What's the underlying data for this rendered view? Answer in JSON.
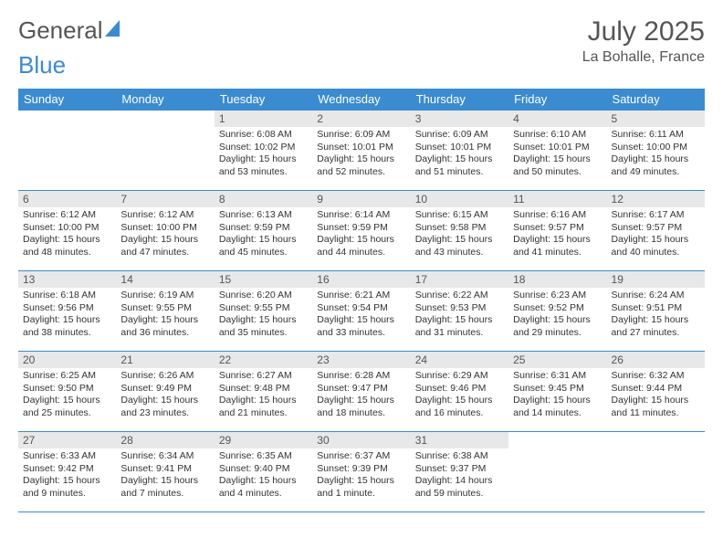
{
  "brand": {
    "part1": "General",
    "part2": "Blue"
  },
  "header": {
    "title": "July 2025",
    "location": "La Bohalle, France"
  },
  "style": {
    "accent_color": "#3b8bd0",
    "daynum_bg": "#e8e8e8",
    "text_color": "#333333",
    "header_text_color": "#555555",
    "background": "#ffffff",
    "daynum_fontsize": 12,
    "body_fontsize": 10.5,
    "header_fontsize": 30,
    "location_fontsize": 16,
    "weekday_fontsize": 13
  },
  "weekdays": [
    "Sunday",
    "Monday",
    "Tuesday",
    "Wednesday",
    "Thursday",
    "Friday",
    "Saturday"
  ],
  "weeks": [
    [
      null,
      null,
      {
        "n": "1",
        "sr": "Sunrise: 6:08 AM",
        "ss": "Sunset: 10:02 PM",
        "d1": "Daylight: 15 hours",
        "d2": "and 53 minutes."
      },
      {
        "n": "2",
        "sr": "Sunrise: 6:09 AM",
        "ss": "Sunset: 10:01 PM",
        "d1": "Daylight: 15 hours",
        "d2": "and 52 minutes."
      },
      {
        "n": "3",
        "sr": "Sunrise: 6:09 AM",
        "ss": "Sunset: 10:01 PM",
        "d1": "Daylight: 15 hours",
        "d2": "and 51 minutes."
      },
      {
        "n": "4",
        "sr": "Sunrise: 6:10 AM",
        "ss": "Sunset: 10:01 PM",
        "d1": "Daylight: 15 hours",
        "d2": "and 50 minutes."
      },
      {
        "n": "5",
        "sr": "Sunrise: 6:11 AM",
        "ss": "Sunset: 10:00 PM",
        "d1": "Daylight: 15 hours",
        "d2": "and 49 minutes."
      }
    ],
    [
      {
        "n": "6",
        "sr": "Sunrise: 6:12 AM",
        "ss": "Sunset: 10:00 PM",
        "d1": "Daylight: 15 hours",
        "d2": "and 48 minutes."
      },
      {
        "n": "7",
        "sr": "Sunrise: 6:12 AM",
        "ss": "Sunset: 10:00 PM",
        "d1": "Daylight: 15 hours",
        "d2": "and 47 minutes."
      },
      {
        "n": "8",
        "sr": "Sunrise: 6:13 AM",
        "ss": "Sunset: 9:59 PM",
        "d1": "Daylight: 15 hours",
        "d2": "and 45 minutes."
      },
      {
        "n": "9",
        "sr": "Sunrise: 6:14 AM",
        "ss": "Sunset: 9:59 PM",
        "d1": "Daylight: 15 hours",
        "d2": "and 44 minutes."
      },
      {
        "n": "10",
        "sr": "Sunrise: 6:15 AM",
        "ss": "Sunset: 9:58 PM",
        "d1": "Daylight: 15 hours",
        "d2": "and 43 minutes."
      },
      {
        "n": "11",
        "sr": "Sunrise: 6:16 AM",
        "ss": "Sunset: 9:57 PM",
        "d1": "Daylight: 15 hours",
        "d2": "and 41 minutes."
      },
      {
        "n": "12",
        "sr": "Sunrise: 6:17 AM",
        "ss": "Sunset: 9:57 PM",
        "d1": "Daylight: 15 hours",
        "d2": "and 40 minutes."
      }
    ],
    [
      {
        "n": "13",
        "sr": "Sunrise: 6:18 AM",
        "ss": "Sunset: 9:56 PM",
        "d1": "Daylight: 15 hours",
        "d2": "and 38 minutes."
      },
      {
        "n": "14",
        "sr": "Sunrise: 6:19 AM",
        "ss": "Sunset: 9:55 PM",
        "d1": "Daylight: 15 hours",
        "d2": "and 36 minutes."
      },
      {
        "n": "15",
        "sr": "Sunrise: 6:20 AM",
        "ss": "Sunset: 9:55 PM",
        "d1": "Daylight: 15 hours",
        "d2": "and 35 minutes."
      },
      {
        "n": "16",
        "sr": "Sunrise: 6:21 AM",
        "ss": "Sunset: 9:54 PM",
        "d1": "Daylight: 15 hours",
        "d2": "and 33 minutes."
      },
      {
        "n": "17",
        "sr": "Sunrise: 6:22 AM",
        "ss": "Sunset: 9:53 PM",
        "d1": "Daylight: 15 hours",
        "d2": "and 31 minutes."
      },
      {
        "n": "18",
        "sr": "Sunrise: 6:23 AM",
        "ss": "Sunset: 9:52 PM",
        "d1": "Daylight: 15 hours",
        "d2": "and 29 minutes."
      },
      {
        "n": "19",
        "sr": "Sunrise: 6:24 AM",
        "ss": "Sunset: 9:51 PM",
        "d1": "Daylight: 15 hours",
        "d2": "and 27 minutes."
      }
    ],
    [
      {
        "n": "20",
        "sr": "Sunrise: 6:25 AM",
        "ss": "Sunset: 9:50 PM",
        "d1": "Daylight: 15 hours",
        "d2": "and 25 minutes."
      },
      {
        "n": "21",
        "sr": "Sunrise: 6:26 AM",
        "ss": "Sunset: 9:49 PM",
        "d1": "Daylight: 15 hours",
        "d2": "and 23 minutes."
      },
      {
        "n": "22",
        "sr": "Sunrise: 6:27 AM",
        "ss": "Sunset: 9:48 PM",
        "d1": "Daylight: 15 hours",
        "d2": "and 21 minutes."
      },
      {
        "n": "23",
        "sr": "Sunrise: 6:28 AM",
        "ss": "Sunset: 9:47 PM",
        "d1": "Daylight: 15 hours",
        "d2": "and 18 minutes."
      },
      {
        "n": "24",
        "sr": "Sunrise: 6:29 AM",
        "ss": "Sunset: 9:46 PM",
        "d1": "Daylight: 15 hours",
        "d2": "and 16 minutes."
      },
      {
        "n": "25",
        "sr": "Sunrise: 6:31 AM",
        "ss": "Sunset: 9:45 PM",
        "d1": "Daylight: 15 hours",
        "d2": "and 14 minutes."
      },
      {
        "n": "26",
        "sr": "Sunrise: 6:32 AM",
        "ss": "Sunset: 9:44 PM",
        "d1": "Daylight: 15 hours",
        "d2": "and 11 minutes."
      }
    ],
    [
      {
        "n": "27",
        "sr": "Sunrise: 6:33 AM",
        "ss": "Sunset: 9:42 PM",
        "d1": "Daylight: 15 hours",
        "d2": "and 9 minutes."
      },
      {
        "n": "28",
        "sr": "Sunrise: 6:34 AM",
        "ss": "Sunset: 9:41 PM",
        "d1": "Daylight: 15 hours",
        "d2": "and 7 minutes."
      },
      {
        "n": "29",
        "sr": "Sunrise: 6:35 AM",
        "ss": "Sunset: 9:40 PM",
        "d1": "Daylight: 15 hours",
        "d2": "and 4 minutes."
      },
      {
        "n": "30",
        "sr": "Sunrise: 6:37 AM",
        "ss": "Sunset: 9:39 PM",
        "d1": "Daylight: 15 hours",
        "d2": "and 1 minute."
      },
      {
        "n": "31",
        "sr": "Sunrise: 6:38 AM",
        "ss": "Sunset: 9:37 PM",
        "d1": "Daylight: 14 hours",
        "d2": "and 59 minutes."
      },
      null,
      null
    ]
  ]
}
